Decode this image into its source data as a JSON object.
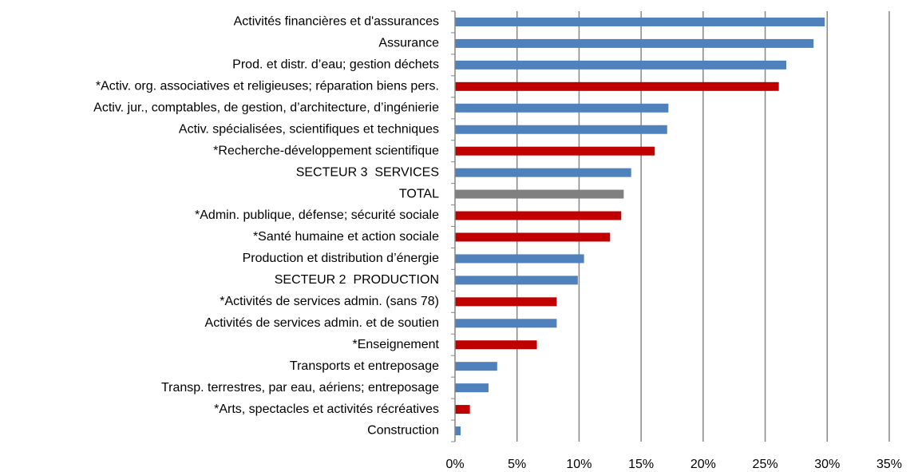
{
  "chart_data": {
    "type": "bar",
    "orientation": "horizontal",
    "categories": [
      "Activités financières et d'assurances",
      "Assurance",
      "Prod. et distr. d’eau; gestion déchets",
      "*Activ. org. associatives et religieuses; réparation biens pers.",
      "Activ. jur., comptables, de gestion, d’architecture, d’ingénierie",
      "Activ. spécialisées, scientifiques et techniques",
      "*Recherche-développement scientifique",
      "SECTEUR 3  SERVICES",
      "TOTAL",
      "*Admin. publique, défense; sécurité sociale",
      "*Santé humaine et action sociale",
      "Production et distribution d’énergie",
      "SECTEUR 2  PRODUCTION",
      "*Activités de services admin. (sans 78)",
      "Activités de services admin. et de soutien",
      "*Enseignement",
      "Transports et entreposage",
      "Transp. terrestres, par eau, aériens; entreposage",
      "*Arts, spectacles et activités récréatives",
      "Construction"
    ],
    "values": [
      29.8,
      28.9,
      26.7,
      26.1,
      17.2,
      17.1,
      16.1,
      14.2,
      13.6,
      13.4,
      12.5,
      10.4,
      9.9,
      8.2,
      8.2,
      6.6,
      3.4,
      2.7,
      1.2,
      0.45
    ],
    "colors": [
      "#4f81bd",
      "#4f81bd",
      "#4f81bd",
      "#c00000",
      "#4f81bd",
      "#4f81bd",
      "#c00000",
      "#4f81bd",
      "#808080",
      "#c00000",
      "#c00000",
      "#4f81bd",
      "#4f81bd",
      "#c00000",
      "#4f81bd",
      "#c00000",
      "#4f81bd",
      "#4f81bd",
      "#c00000",
      "#4f81bd"
    ],
    "xlim": [
      0,
      35
    ],
    "xticks": [
      {
        "value": 0,
        "label": "0%"
      },
      {
        "value": 5,
        "label": "5%"
      },
      {
        "value": 10,
        "label": "10%"
      },
      {
        "value": 15,
        "label": "15%"
      },
      {
        "value": 20,
        "label": "20%"
      },
      {
        "value": 25,
        "label": "25%"
      },
      {
        "value": 30,
        "label": "30%"
      },
      {
        "value": 35,
        "label": "35%"
      }
    ],
    "grid": true
  }
}
